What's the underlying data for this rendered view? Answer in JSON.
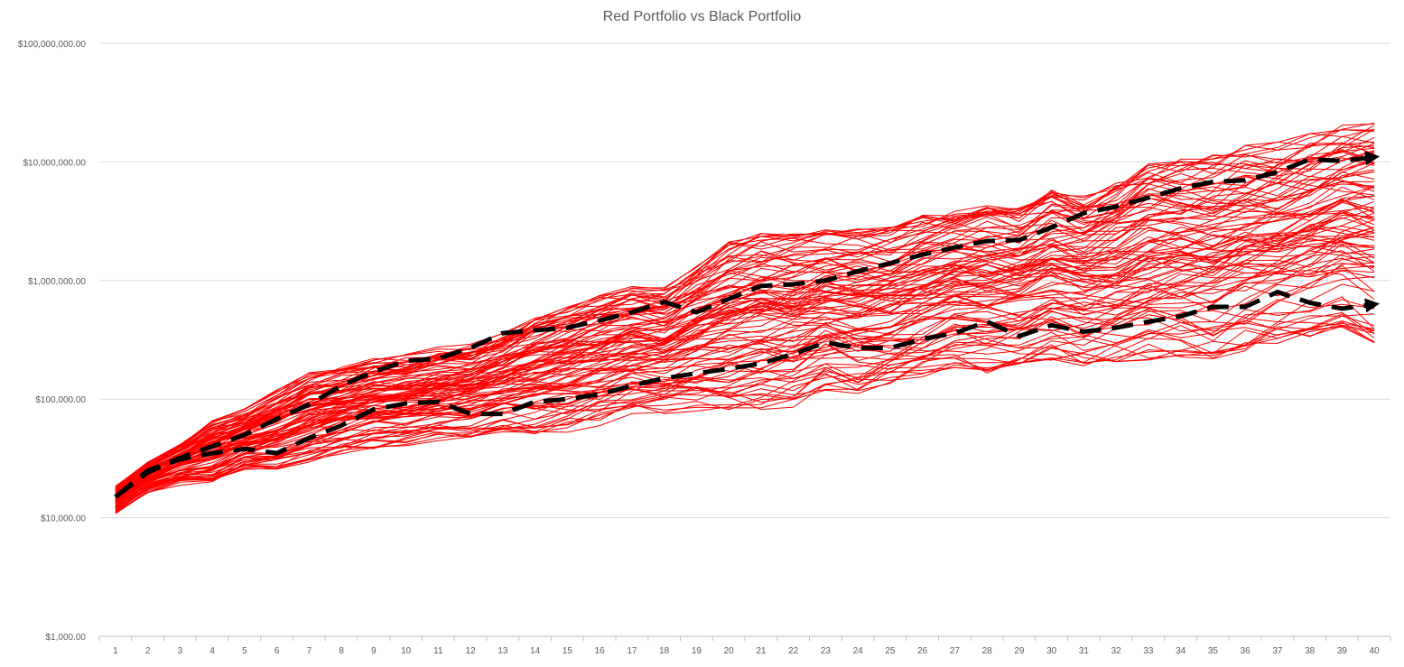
{
  "chart_data": {
    "type": "line",
    "title": "Red Portfolio vs Black Portfolio",
    "xlabel": "",
    "ylabel": "",
    "y_scale": "log",
    "ylim": [
      1000,
      100000000
    ],
    "y_tick_values": [
      1000,
      10000,
      100000,
      1000000,
      10000000,
      100000000
    ],
    "y_tick_labels": [
      "$1,000.00",
      "$10,000.00",
      "$100,000.00",
      "$1,000,000.00",
      "$10,000,000.00",
      "$100,000,000.00"
    ],
    "x": [
      1,
      2,
      3,
      4,
      5,
      6,
      7,
      8,
      9,
      10,
      11,
      12,
      13,
      14,
      15,
      16,
      17,
      18,
      19,
      20,
      21,
      22,
      23,
      24,
      25,
      26,
      27,
      28,
      29,
      30,
      31,
      32,
      33,
      34,
      35,
      36,
      37,
      38,
      39,
      40
    ],
    "grid": "horizontal",
    "legend": "none",
    "colors": {
      "red_series": "#ff0000",
      "black_series": "#000000"
    },
    "black_series": [
      {
        "values": [
          15000,
          24000,
          32000,
          40000,
          50000,
          68000,
          90000,
          130000,
          170000,
          210000,
          220000,
          270000,
          360000,
          380000,
          400000,
          460000,
          540000,
          660000,
          540000,
          700000,
          900000,
          930000,
          1000000,
          1200000,
          1400000,
          1650000,
          1900000,
          2150000,
          2200000,
          2800000,
          3700000,
          4200000,
          5000000,
          6000000,
          6800000,
          7000000,
          8200000,
          10500000,
          10200000,
          11000000
        ]
      },
      {
        "values": [
          15000,
          25000,
          31000,
          35000,
          38000,
          35000,
          47000,
          60000,
          82000,
          92000,
          95000,
          75000,
          75000,
          95000,
          100000,
          110000,
          130000,
          150000,
          165000,
          180000,
          200000,
          240000,
          300000,
          270000,
          270000,
          320000,
          360000,
          450000,
          340000,
          420000,
          370000,
          400000,
          450000,
          500000,
          600000,
          600000,
          800000,
          650000,
          580000,
          630000
        ]
      }
    ],
    "red_series_count": 100,
    "red_series_ranges": {
      "min": [
        10000,
        15000,
        18000,
        17000,
        23000,
        23000,
        28000,
        33000,
        36000,
        38000,
        42000,
        45000,
        50000,
        47000,
        49000,
        55000,
        67000,
        69000,
        73000,
        72000,
        72000,
        78000,
        110000,
        98000,
        115000,
        135000,
        170000,
        150000,
        170000,
        190000,
        170000,
        180000,
        190000,
        200000,
        190000,
        230000,
        270000,
        300000,
        370000,
        260000
      ],
      "max": [
        20000,
        32000,
        45000,
        72000,
        85000,
        125000,
        175000,
        195000,
        235000,
        250000,
        290000,
        310000,
        390000,
        560000,
        680000,
        820000,
        960000,
        950000,
        1450000,
        2300000,
        2700000,
        2800000,
        2900000,
        2950000,
        3000000,
        3800000,
        4100000,
        4600000,
        4400000,
        6200000,
        5600000,
        7400000,
        10500000,
        11500000,
        12500000,
        15000000,
        16000000,
        19000000,
        23000000,
        27000000
      ]
    }
  }
}
